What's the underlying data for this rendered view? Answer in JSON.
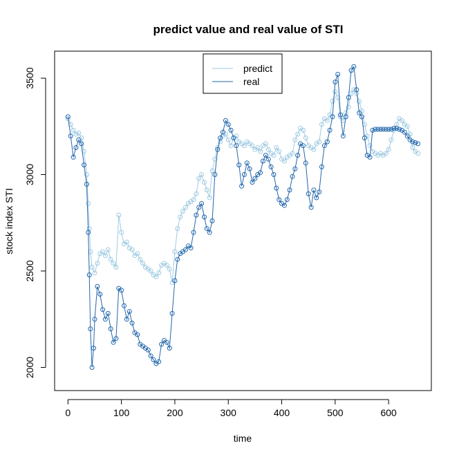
{
  "chart_data": {
    "type": "line",
    "title": "predict value and real value of STI",
    "xlabel": "time",
    "ylabel": "stock index STI",
    "xlim": [
      -25,
      680
    ],
    "ylim": [
      1880,
      3640
    ],
    "xticks": [
      0,
      100,
      200,
      300,
      400,
      500,
      600
    ],
    "yticks": [
      2000,
      2500,
      3000,
      3500
    ],
    "grid": false,
    "legend": {
      "position": "top-center",
      "entries": [
        "predict",
        "real"
      ]
    },
    "series": [
      {
        "name": "predict",
        "color": "#9ecae1",
        "points": [
          [
            0,
            3290
          ],
          [
            5,
            3260
          ],
          [
            10,
            3230
          ],
          [
            15,
            3210
          ],
          [
            20,
            3215
          ],
          [
            25,
            3190
          ],
          [
            30,
            3120
          ],
          [
            35,
            3000
          ],
          [
            38,
            2850
          ],
          [
            40,
            2720
          ],
          [
            42,
            2600
          ],
          [
            45,
            2520
          ],
          [
            50,
            2490
          ],
          [
            55,
            2540
          ],
          [
            60,
            2590
          ],
          [
            65,
            2600
          ],
          [
            70,
            2580
          ],
          [
            75,
            2610
          ],
          [
            80,
            2560
          ],
          [
            85,
            2540
          ],
          [
            90,
            2520
          ],
          [
            95,
            2790
          ],
          [
            100,
            2700
          ],
          [
            105,
            2640
          ],
          [
            110,
            2650
          ],
          [
            115,
            2620
          ],
          [
            120,
            2610
          ],
          [
            125,
            2580
          ],
          [
            130,
            2590
          ],
          [
            135,
            2560
          ],
          [
            140,
            2540
          ],
          [
            145,
            2520
          ],
          [
            150,
            2510
          ],
          [
            155,
            2500
          ],
          [
            160,
            2480
          ],
          [
            165,
            2470
          ],
          [
            170,
            2490
          ],
          [
            175,
            2530
          ],
          [
            180,
            2540
          ],
          [
            185,
            2530
          ],
          [
            190,
            2510
          ],
          [
            195,
            2440
          ],
          [
            200,
            2600
          ],
          [
            205,
            2720
          ],
          [
            210,
            2780
          ],
          [
            215,
            2810
          ],
          [
            220,
            2830
          ],
          [
            225,
            2850
          ],
          [
            230,
            2860
          ],
          [
            235,
            2870
          ],
          [
            240,
            2900
          ],
          [
            245,
            2980
          ],
          [
            250,
            3000
          ],
          [
            255,
            2960
          ],
          [
            260,
            2920
          ],
          [
            265,
            2880
          ],
          [
            270,
            3020
          ],
          [
            275,
            3080
          ],
          [
            280,
            3140
          ],
          [
            285,
            3170
          ],
          [
            290,
            3200
          ],
          [
            295,
            3210
          ],
          [
            300,
            3180
          ],
          [
            305,
            3150
          ],
          [
            310,
            3190
          ],
          [
            315,
            3200
          ],
          [
            320,
            3170
          ],
          [
            325,
            3160
          ],
          [
            330,
            3150
          ],
          [
            335,
            3170
          ],
          [
            340,
            3160
          ],
          [
            345,
            3150
          ],
          [
            350,
            3130
          ],
          [
            355,
            3140
          ],
          [
            360,
            3120
          ],
          [
            365,
            3150
          ],
          [
            370,
            3160
          ],
          [
            375,
            3130
          ],
          [
            380,
            3110
          ],
          [
            385,
            3100
          ],
          [
            390,
            3140
          ],
          [
            395,
            3120
          ],
          [
            400,
            3080
          ],
          [
            405,
            3070
          ],
          [
            410,
            3090
          ],
          [
            415,
            3100
          ],
          [
            420,
            3110
          ],
          [
            425,
            3180
          ],
          [
            430,
            3210
          ],
          [
            435,
            3240
          ],
          [
            440,
            3230
          ],
          [
            445,
            3190
          ],
          [
            450,
            3150
          ],
          [
            455,
            3140
          ],
          [
            460,
            3130
          ],
          [
            465,
            3160
          ],
          [
            470,
            3170
          ],
          [
            475,
            3260
          ],
          [
            480,
            3290
          ],
          [
            485,
            3280
          ],
          [
            490,
            3310
          ],
          [
            495,
            3380
          ],
          [
            500,
            3430
          ],
          [
            505,
            3400
          ],
          [
            510,
            3300
          ],
          [
            515,
            3280
          ],
          [
            520,
            3320
          ],
          [
            525,
            3350
          ],
          [
            530,
            3420
          ],
          [
            535,
            3440
          ],
          [
            540,
            3420
          ],
          [
            545,
            3380
          ],
          [
            550,
            3330
          ],
          [
            555,
            3260
          ],
          [
            560,
            3200
          ],
          [
            565,
            3150
          ],
          [
            570,
            3120
          ],
          [
            575,
            3110
          ],
          [
            580,
            3100
          ],
          [
            585,
            3110
          ],
          [
            590,
            3100
          ],
          [
            595,
            3110
          ],
          [
            600,
            3130
          ],
          [
            605,
            3180
          ],
          [
            610,
            3230
          ],
          [
            615,
            3260
          ],
          [
            620,
            3290
          ],
          [
            625,
            3280
          ],
          [
            630,
            3260
          ],
          [
            635,
            3250
          ],
          [
            640,
            3210
          ],
          [
            645,
            3140
          ],
          [
            650,
            3120
          ],
          [
            655,
            3110
          ]
        ]
      },
      {
        "name": "real",
        "color": "#2166ac",
        "points": [
          [
            0,
            3300
          ],
          [
            5,
            3200
          ],
          [
            10,
            3090
          ],
          [
            15,
            3140
          ],
          [
            20,
            3180
          ],
          [
            25,
            3160
          ],
          [
            30,
            3050
          ],
          [
            35,
            2950
          ],
          [
            38,
            2700
          ],
          [
            40,
            2480
          ],
          [
            42,
            2200
          ],
          [
            45,
            2000
          ],
          [
            48,
            2100
          ],
          [
            50,
            2250
          ],
          [
            55,
            2420
          ],
          [
            60,
            2380
          ],
          [
            65,
            2300
          ],
          [
            70,
            2250
          ],
          [
            75,
            2280
          ],
          [
            80,
            2200
          ],
          [
            85,
            2130
          ],
          [
            90,
            2150
          ],
          [
            95,
            2410
          ],
          [
            100,
            2400
          ],
          [
            105,
            2320
          ],
          [
            110,
            2250
          ],
          [
            115,
            2290
          ],
          [
            120,
            2230
          ],
          [
            125,
            2180
          ],
          [
            130,
            2170
          ],
          [
            135,
            2120
          ],
          [
            140,
            2110
          ],
          [
            145,
            2100
          ],
          [
            150,
            2090
          ],
          [
            155,
            2060
          ],
          [
            160,
            2040
          ],
          [
            165,
            2020
          ],
          [
            170,
            2030
          ],
          [
            175,
            2120
          ],
          [
            180,
            2140
          ],
          [
            185,
            2130
          ],
          [
            190,
            2100
          ],
          [
            195,
            2280
          ],
          [
            200,
            2450
          ],
          [
            205,
            2560
          ],
          [
            210,
            2590
          ],
          [
            215,
            2600
          ],
          [
            220,
            2610
          ],
          [
            225,
            2630
          ],
          [
            230,
            2620
          ],
          [
            235,
            2700
          ],
          [
            240,
            2790
          ],
          [
            245,
            2830
          ],
          [
            250,
            2850
          ],
          [
            255,
            2780
          ],
          [
            260,
            2720
          ],
          [
            265,
            2700
          ],
          [
            270,
            2760
          ],
          [
            275,
            3000
          ],
          [
            280,
            3130
          ],
          [
            285,
            3190
          ],
          [
            290,
            3220
          ],
          [
            295,
            3280
          ],
          [
            300,
            3260
          ],
          [
            305,
            3230
          ],
          [
            310,
            3190
          ],
          [
            315,
            3150
          ],
          [
            320,
            3050
          ],
          [
            325,
            2940
          ],
          [
            330,
            3000
          ],
          [
            335,
            3060
          ],
          [
            340,
            3030
          ],
          [
            345,
            2960
          ],
          [
            350,
            2980
          ],
          [
            355,
            3000
          ],
          [
            360,
            3010
          ],
          [
            365,
            3070
          ],
          [
            370,
            3100
          ],
          [
            375,
            3080
          ],
          [
            380,
            3040
          ],
          [
            385,
            3000
          ],
          [
            390,
            2930
          ],
          [
            395,
            2870
          ],
          [
            400,
            2850
          ],
          [
            405,
            2840
          ],
          [
            410,
            2870
          ],
          [
            415,
            2920
          ],
          [
            420,
            2990
          ],
          [
            425,
            3030
          ],
          [
            430,
            3100
          ],
          [
            435,
            3160
          ],
          [
            440,
            3150
          ],
          [
            445,
            3060
          ],
          [
            450,
            2900
          ],
          [
            455,
            2830
          ],
          [
            460,
            2920
          ],
          [
            465,
            2880
          ],
          [
            470,
            2910
          ],
          [
            475,
            3040
          ],
          [
            480,
            3150
          ],
          [
            485,
            3170
          ],
          [
            490,
            3230
          ],
          [
            495,
            3300
          ],
          [
            500,
            3480
          ],
          [
            505,
            3520
          ],
          [
            510,
            3310
          ],
          [
            515,
            3200
          ],
          [
            520,
            3300
          ],
          [
            525,
            3400
          ],
          [
            530,
            3540
          ],
          [
            535,
            3560
          ],
          [
            540,
            3440
          ],
          [
            545,
            3320
          ],
          [
            550,
            3300
          ],
          [
            555,
            3190
          ],
          [
            560,
            3100
          ],
          [
            565,
            3090
          ],
          [
            570,
            3230
          ],
          [
            575,
            3235
          ],
          [
            580,
            3235
          ],
          [
            585,
            3235
          ],
          [
            590,
            3235
          ],
          [
            595,
            3235
          ],
          [
            600,
            3235
          ],
          [
            605,
            3235
          ],
          [
            610,
            3240
          ],
          [
            615,
            3240
          ],
          [
            620,
            3235
          ],
          [
            625,
            3230
          ],
          [
            630,
            3220
          ],
          [
            635,
            3200
          ],
          [
            640,
            3180
          ],
          [
            645,
            3170
          ],
          [
            650,
            3165
          ],
          [
            655,
            3160
          ]
        ]
      }
    ]
  }
}
